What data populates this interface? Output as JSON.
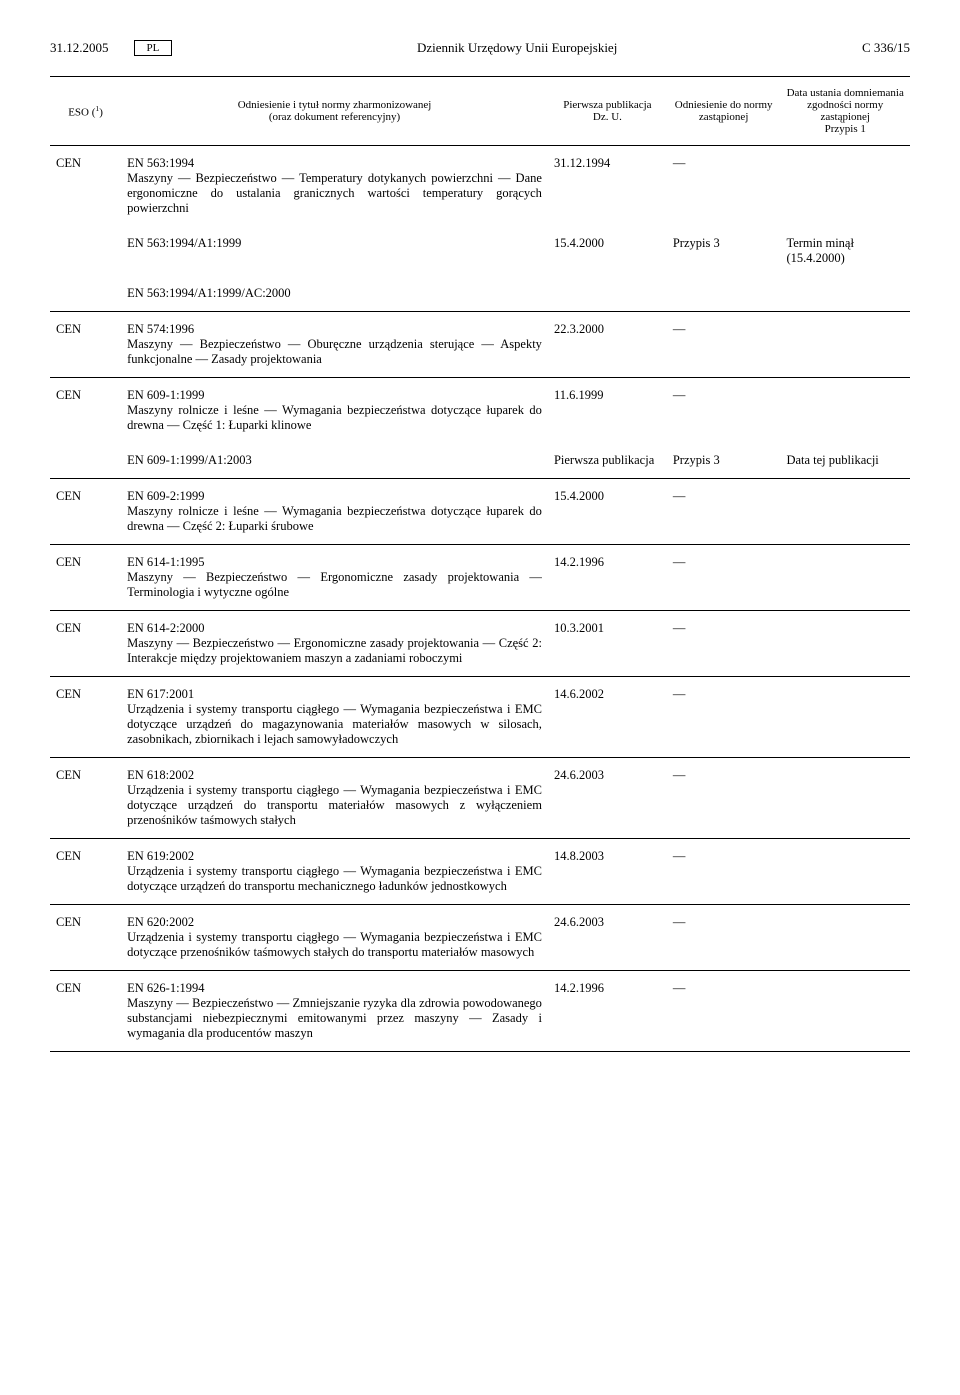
{
  "header": {
    "date": "31.12.2005",
    "lang": "PL",
    "journal": "Dziennik Urzędowy Unii Europejskiej",
    "page": "C 336/15"
  },
  "columns": {
    "eso": "ESO (¹)",
    "title": "Odniesienie i tytuł normy zharmonizowanej\n(oraz dokument referencyjny)",
    "pub": "Pierwsza publikacja\nDz. U.",
    "ref": "Odniesienie do normy zastąpionej",
    "date": "Data ustania domniemania zgodności normy zastąpionej\nPrzypis 1"
  },
  "rows": [
    {
      "sep": true,
      "eso": "CEN",
      "code": "EN 563:1994",
      "desc": "Maszyny — Bezpieczeństwo — Temperatury dotykanych powierzchni — Dane ergonomiczne do ustalania granicznych wartości temperatury gorących powierzchni",
      "pub": "31.12.1994",
      "ref": "—",
      "date": ""
    },
    {
      "sep": false,
      "eso": "",
      "code": "EN 563:1994/A1:1999",
      "desc": "",
      "pub": "15.4.2000",
      "ref": "Przypis 3",
      "date": "Termin minął (15.4.2000)"
    },
    {
      "sep": false,
      "eso": "",
      "code": "EN 563:1994/A1:1999/AC:2000",
      "desc": "",
      "pub": "",
      "ref": "",
      "date": ""
    },
    {
      "sep": true,
      "eso": "CEN",
      "code": "EN 574:1996",
      "desc": "Maszyny — Bezpieczeństwo — Oburęczne urządzenia sterujące — Aspekty funkcjonalne — Zasady projektowania",
      "pub": "22.3.2000",
      "ref": "—",
      "date": ""
    },
    {
      "sep": true,
      "eso": "CEN",
      "code": "EN 609-1:1999",
      "desc": "Maszyny rolnicze i leśne — Wymagania bezpieczeństwa dotyczące łuparek do drewna — Część 1: Łuparki klinowe",
      "pub": "11.6.1999",
      "ref": "—",
      "date": ""
    },
    {
      "sep": false,
      "eso": "",
      "code": "EN 609-1:1999/A1:2003",
      "desc": "",
      "pub": "Pierwsza publikacja",
      "ref": "Przypis 3",
      "date": "Data tej publikacji"
    },
    {
      "sep": true,
      "eso": "CEN",
      "code": "EN 609-2:1999",
      "desc": "Maszyny rolnicze i leśne — Wymagania bezpieczeństwa dotyczące łuparek do drewna — Część 2: Łuparki śrubowe",
      "pub": "15.4.2000",
      "ref": "—",
      "date": ""
    },
    {
      "sep": true,
      "eso": "CEN",
      "code": "EN 614-1:1995",
      "desc": "Maszyny — Bezpieczeństwo — Ergonomiczne zasady projektowania — Terminologia i wytyczne ogólne",
      "pub": "14.2.1996",
      "ref": "—",
      "date": ""
    },
    {
      "sep": true,
      "eso": "CEN",
      "code": "EN 614-2:2000",
      "desc": "Maszyny — Bezpieczeństwo — Ergonomiczne zasady projektowania — Część 2: Interakcje między projektowaniem maszyn a zadaniami roboczymi",
      "pub": "10.3.2001",
      "ref": "—",
      "date": ""
    },
    {
      "sep": true,
      "eso": "CEN",
      "code": "EN 617:2001",
      "desc": "Urządzenia i systemy transportu ciągłego — Wymagania bezpieczeństwa i EMC dotyczące urządzeń do magazynowania materiałów masowych w silosach, zasobnikach, zbiornikach i lejach samowyładowczych",
      "pub": "14.6.2002",
      "ref": "—",
      "date": ""
    },
    {
      "sep": true,
      "eso": "CEN",
      "code": "EN 618:2002",
      "desc": "Urządzenia i systemy transportu ciągłego — Wymagania bezpieczeństwa i EMC dotyczące urządzeń do transportu materiałów masowych z wyłączeniem przenośników taśmowych stałych",
      "pub": "24.6.2003",
      "ref": "—",
      "date": ""
    },
    {
      "sep": true,
      "eso": "CEN",
      "code": "EN 619:2002",
      "desc": "Urządzenia i systemy transportu ciągłego — Wymagania bezpieczeństwa i EMC dotyczące urządzeń do transportu mechanicznego ładunków jednostkowych",
      "pub": "14.8.2003",
      "ref": "—",
      "date": ""
    },
    {
      "sep": true,
      "eso": "CEN",
      "code": "EN 620:2002",
      "desc": "Urządzenia i systemy transportu ciągłego — Wymagania bezpieczeństwa i EMC dotyczące przenośników taśmowych stałych do transportu materiałów masowych",
      "pub": "24.6.2003",
      "ref": "—",
      "date": ""
    },
    {
      "sep": true,
      "eso": "CEN",
      "code": "EN 626-1:1994",
      "desc": "Maszyny — Bezpieczeństwo — Zmniejszanie ryzyka dla zdrowia powodowanego substancjami niebezpiecznymi emitowanymi przez maszyny — Zasady i wymagania dla producentów maszyn",
      "pub": "14.2.1996",
      "ref": "—",
      "date": ""
    }
  ]
}
